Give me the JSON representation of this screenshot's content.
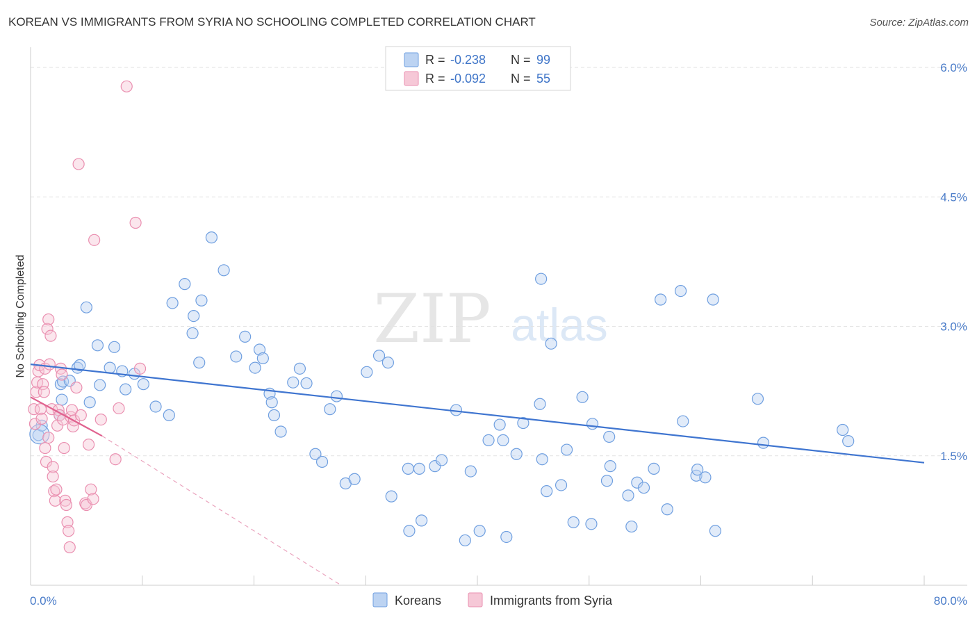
{
  "title": "KOREAN VS IMMIGRANTS FROM SYRIA NO SCHOOLING COMPLETED CORRELATION CHART",
  "source": "Source: ZipAtlas.com",
  "watermark": {
    "zip": "ZIP",
    "atlas": "atlas"
  },
  "legend_top": [
    {
      "r_label": "R =",
      "r_value": "-0.238",
      "n_label": "N =",
      "n_value": "99",
      "color": "#6f9fe0",
      "fill": "#bcd3f2"
    },
    {
      "r_label": "R =",
      "r_value": "-0.092",
      "n_label": "N =",
      "n_value": "55",
      "color": "#ea8fb0",
      "fill": "#f6c8d7"
    }
  ],
  "chart_data": {
    "type": "scatter",
    "title": "KOREAN VS IMMIGRANTS FROM SYRIA NO SCHOOLING COMPLETED CORRELATION CHART",
    "xlabel": "",
    "ylabel": "No Schooling Completed",
    "xlim": [
      0,
      80
    ],
    "ylim": [
      0,
      6.4
    ],
    "x_tick_labels": [
      "0.0%",
      "80.0%"
    ],
    "y_ticks": [
      1.5,
      3.0,
      4.5,
      6.0
    ],
    "y_tick_labels": [
      "1.5%",
      "3.0%",
      "4.5%",
      "6.0%"
    ],
    "legend_position": "bottom-center",
    "series": [
      {
        "name": "Koreans",
        "color": "#6f9fe0",
        "fill": "#bcd3f2",
        "trend": {
          "x": [
            0,
            80
          ],
          "y": [
            2.56,
            1.42
          ]
        },
        "points": [
          [
            0.7,
            1.74
          ],
          [
            1.0,
            1.85
          ],
          [
            2.6,
            1.97
          ],
          [
            2.8,
            2.15
          ],
          [
            2.7,
            2.33
          ],
          [
            2.9,
            2.36
          ],
          [
            3.5,
            2.37
          ],
          [
            4.2,
            2.52
          ],
          [
            5.0,
            3.22
          ],
          [
            4.4,
            2.55
          ],
          [
            5.3,
            2.12
          ],
          [
            6.0,
            2.78
          ],
          [
            6.2,
            2.32
          ],
          [
            7.1,
            2.52
          ],
          [
            7.5,
            2.76
          ],
          [
            8.2,
            2.48
          ],
          [
            8.5,
            2.27
          ],
          [
            9.3,
            2.45
          ],
          [
            10.1,
            2.33
          ],
          [
            11.2,
            2.07
          ],
          [
            12.4,
            1.97
          ],
          [
            12.7,
            3.27
          ],
          [
            13.8,
            3.49
          ],
          [
            14.5,
            2.92
          ],
          [
            14.6,
            3.12
          ],
          [
            15.1,
            2.58
          ],
          [
            15.3,
            3.3
          ],
          [
            16.2,
            4.03
          ],
          [
            17.3,
            3.65
          ],
          [
            18.4,
            2.65
          ],
          [
            19.2,
            2.88
          ],
          [
            20.5,
            2.73
          ],
          [
            20.8,
            2.63
          ],
          [
            20.1,
            2.52
          ],
          [
            21.4,
            2.22
          ],
          [
            21.6,
            2.12
          ],
          [
            21.8,
            1.97
          ],
          [
            22.4,
            1.78
          ],
          [
            23.5,
            2.35
          ],
          [
            24.1,
            2.51
          ],
          [
            24.7,
            2.34
          ],
          [
            25.5,
            1.52
          ],
          [
            26.1,
            1.43
          ],
          [
            26.8,
            2.04
          ],
          [
            27.4,
            2.19
          ],
          [
            28.2,
            1.18
          ],
          [
            29.0,
            1.23
          ],
          [
            30.1,
            2.47
          ],
          [
            31.2,
            2.66
          ],
          [
            32.0,
            2.58
          ],
          [
            32.3,
            1.03
          ],
          [
            33.8,
            1.35
          ],
          [
            33.9,
            0.63
          ],
          [
            34.8,
            1.35
          ],
          [
            35.0,
            0.75
          ],
          [
            36.2,
            1.38
          ],
          [
            36.8,
            1.45
          ],
          [
            38.1,
            2.03
          ],
          [
            38.9,
            0.52
          ],
          [
            39.4,
            1.32
          ],
          [
            40.2,
            0.63
          ],
          [
            41.0,
            1.68
          ],
          [
            42.0,
            1.86
          ],
          [
            42.3,
            1.68
          ],
          [
            42.6,
            0.56
          ],
          [
            43.5,
            1.52
          ],
          [
            44.1,
            1.88
          ],
          [
            45.7,
            3.55
          ],
          [
            45.6,
            2.1
          ],
          [
            45.8,
            1.46
          ],
          [
            46.6,
            2.8
          ],
          [
            46.2,
            1.09
          ],
          [
            47.5,
            1.16
          ],
          [
            48.0,
            1.57
          ],
          [
            48.6,
            0.73
          ],
          [
            49.4,
            2.18
          ],
          [
            50.2,
            0.71
          ],
          [
            50.3,
            1.87
          ],
          [
            51.6,
            1.21
          ],
          [
            51.8,
            1.72
          ],
          [
            51.9,
            1.38
          ],
          [
            53.5,
            1.04
          ],
          [
            53.8,
            0.68
          ],
          [
            54.3,
            1.19
          ],
          [
            54.9,
            1.13
          ],
          [
            55.8,
            1.35
          ],
          [
            56.4,
            3.31
          ],
          [
            57.0,
            0.88
          ],
          [
            58.2,
            3.41
          ],
          [
            58.4,
            1.9
          ],
          [
            59.6,
            1.27
          ],
          [
            59.7,
            1.34
          ],
          [
            60.4,
            1.25
          ],
          [
            61.3,
            0.63
          ],
          [
            61.1,
            3.31
          ],
          [
            65.1,
            2.16
          ],
          [
            65.6,
            1.65
          ],
          [
            72.7,
            1.8
          ],
          [
            73.2,
            1.67
          ]
        ]
      },
      {
        "name": "Immigrants from Syria",
        "color": "#ea8fb0",
        "fill": "#f6c8d7",
        "trend": {
          "x": [
            0,
            6.4
          ],
          "y": [
            2.18,
            1.73
          ]
        },
        "trend_dashed": {
          "x": [
            6.4,
            27.8
          ],
          "y": [
            1.73,
            0.0
          ]
        },
        "points": [
          [
            0.3,
            2.04
          ],
          [
            0.4,
            1.87
          ],
          [
            0.5,
            2.24
          ],
          [
            0.6,
            2.35
          ],
          [
            0.7,
            2.48
          ],
          [
            0.8,
            2.55
          ],
          [
            0.9,
            2.04
          ],
          [
            1.0,
            1.93
          ],
          [
            1.1,
            2.33
          ],
          [
            1.2,
            2.24
          ],
          [
            1.3,
            2.51
          ],
          [
            1.3,
            1.59
          ],
          [
            1.4,
            1.43
          ],
          [
            1.5,
            2.97
          ],
          [
            1.6,
            3.08
          ],
          [
            1.6,
            1.71
          ],
          [
            1.7,
            2.56
          ],
          [
            1.8,
            2.89
          ],
          [
            1.9,
            2.04
          ],
          [
            2.0,
            1.37
          ],
          [
            2.0,
            1.26
          ],
          [
            2.1,
            1.09
          ],
          [
            2.2,
            0.98
          ],
          [
            2.3,
            1.11
          ],
          [
            2.4,
            1.85
          ],
          [
            2.5,
            2.03
          ],
          [
            2.6,
            1.97
          ],
          [
            2.7,
            2.51
          ],
          [
            2.8,
            2.44
          ],
          [
            2.9,
            1.92
          ],
          [
            3.0,
            1.59
          ],
          [
            3.1,
            0.98
          ],
          [
            3.2,
            0.93
          ],
          [
            3.3,
            0.73
          ],
          [
            3.4,
            0.63
          ],
          [
            3.5,
            0.44
          ],
          [
            3.6,
            1.95
          ],
          [
            3.7,
            2.03
          ],
          [
            3.8,
            1.84
          ],
          [
            3.9,
            1.91
          ],
          [
            4.1,
            2.29
          ],
          [
            4.3,
            4.88
          ],
          [
            4.5,
            1.97
          ],
          [
            4.9,
            0.95
          ],
          [
            5.0,
            0.93
          ],
          [
            5.2,
            1.63
          ],
          [
            5.4,
            1.11
          ],
          [
            5.6,
            1.0
          ],
          [
            5.7,
            4.0
          ],
          [
            6.3,
            1.92
          ],
          [
            7.6,
            1.46
          ],
          [
            7.9,
            2.05
          ],
          [
            8.6,
            5.78
          ],
          [
            9.4,
            4.2
          ],
          [
            9.8,
            2.51
          ]
        ]
      }
    ]
  }
}
